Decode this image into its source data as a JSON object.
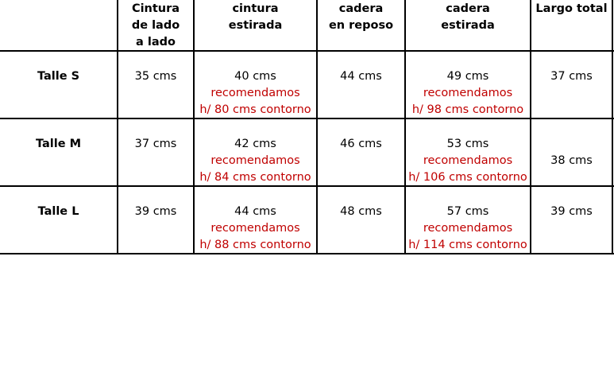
{
  "headers": [
    "Cintura de lado a lado",
    "cintura estirada",
    "cadera en reposo",
    "cadera estirada",
    "Largo total"
  ],
  "header_lines": [
    [
      "Cintura",
      "de lado",
      "a lado"
    ],
    [
      "cintura",
      "estirada"
    ],
    [
      "cadera",
      "en reposo"
    ],
    [
      "cadera",
      "estirada"
    ],
    [
      "Largo total"
    ]
  ],
  "rows": [
    {
      "label": "Talle S",
      "cintura_lado": "35 cms",
      "cintura_estirada": "40 cms",
      "cintura_rec": "recomendamos",
      "cintura_contorno": "h/ 80 cms contorno",
      "cadera_reposo": "44 cms",
      "cadera_estirada": "49 cms",
      "cadera_rec": "recomendamos",
      "cadera_contorno": "h/ 98 cms contorno",
      "largo": "37 cms"
    },
    {
      "label": "Talle M",
      "cintura_lado": "37 cms",
      "cintura_estirada": "42 cms",
      "cintura_rec": "recomendamos",
      "cintura_contorno": "h/ 84 cms contorno",
      "cadera_reposo": "46 cms",
      "cadera_estirada": "53  cms",
      "cadera_rec": "recomendamos",
      "cadera_contorno": "h/ 106 cms contorno",
      "largo": "38 cms"
    },
    {
      "label": "Talle L",
      "cintura_lado": "39 cms",
      "cintura_estirada": "44 cms",
      "cintura_rec": "recomendamos",
      "cintura_contorno": "h/ 88 cms contorno",
      "cadera_reposo": "48 cms",
      "cadera_estirada": "57 cms",
      "cadera_rec": "recomendamos",
      "cadera_contorno": "h/ 114 cms contorno",
      "largo": "39 cms"
    }
  ],
  "colors": {
    "recommendation_text": "#c00000",
    "grid": "#000000"
  }
}
